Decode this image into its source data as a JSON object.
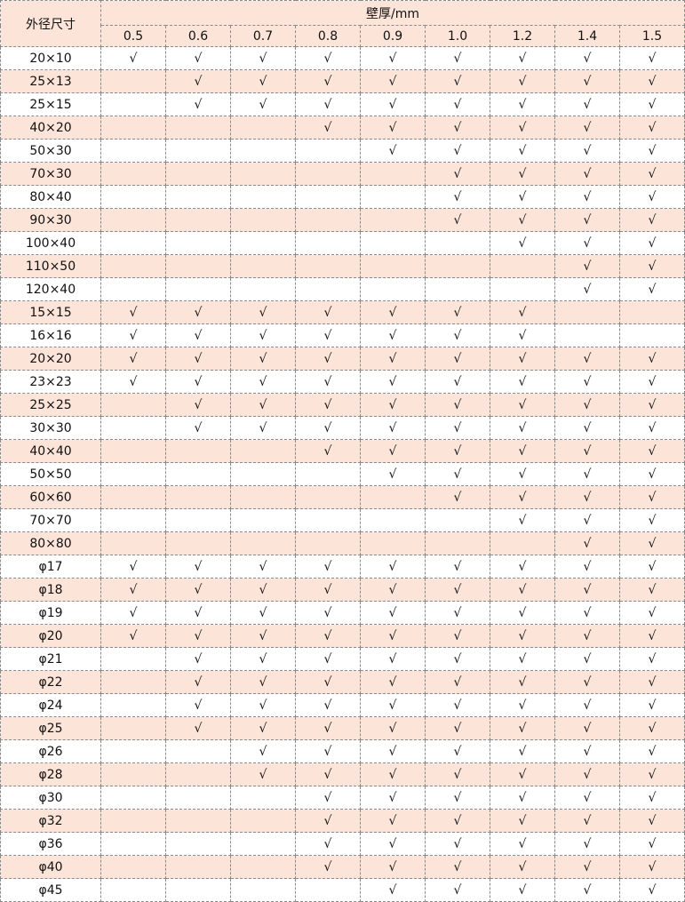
{
  "table": {
    "row_header": "外径尺寸",
    "group_header": "壁厚/mm",
    "columns": [
      "0.5",
      "0.6",
      "0.7",
      "0.8",
      "0.9",
      "1.0",
      "1.2",
      "1.4",
      "1.5"
    ],
    "colors": {
      "header_bg": "#fde4d8",
      "alt_row_bg": "#fde4d8",
      "border": "#8a8a8a"
    },
    "rows": [
      {
        "size": "20×10",
        "marks": [
          "√",
          "√",
          "√",
          "√",
          "√",
          "√",
          "√",
          "√",
          "√"
        ]
      },
      {
        "size": "25×13",
        "marks": [
          "",
          "√",
          "√",
          "√",
          "√",
          "√",
          "√",
          "√",
          "√"
        ]
      },
      {
        "size": "25×15",
        "marks": [
          "",
          "√",
          "√",
          "√",
          "√",
          "√",
          "√",
          "√",
          "√"
        ]
      },
      {
        "size": "40×20",
        "marks": [
          "",
          "",
          "",
          "√",
          "√",
          "√",
          "√",
          "√",
          "√"
        ]
      },
      {
        "size": "50×30",
        "marks": [
          "",
          "",
          "",
          "",
          "√",
          "√",
          "√",
          "√",
          "√"
        ]
      },
      {
        "size": "70×30",
        "marks": [
          "",
          "",
          "",
          "",
          "",
          "√",
          "√",
          "√",
          "√"
        ]
      },
      {
        "size": "80×40",
        "marks": [
          "",
          "",
          "",
          "",
          "",
          "√",
          "√",
          "√",
          "√"
        ]
      },
      {
        "size": "90×30",
        "marks": [
          "",
          "",
          "",
          "",
          "",
          "√",
          "√",
          "√",
          "√"
        ]
      },
      {
        "size": "100×40",
        "marks": [
          "",
          "",
          "",
          "",
          "",
          "",
          "√",
          "√",
          "√"
        ]
      },
      {
        "size": "110×50",
        "marks": [
          "",
          "",
          "",
          "",
          "",
          "",
          "",
          "√",
          "√"
        ]
      },
      {
        "size": "120×40",
        "marks": [
          "",
          "",
          "",
          "",
          "",
          "",
          "",
          "√",
          "√"
        ]
      },
      {
        "size": "15×15",
        "marks": [
          "√",
          "√",
          "√",
          "√",
          "√",
          "√",
          "√",
          "",
          ""
        ]
      },
      {
        "size": "16×16",
        "marks": [
          "√",
          "√",
          "√",
          "√",
          "√",
          "√",
          "√",
          "",
          ""
        ]
      },
      {
        "size": "20×20",
        "marks": [
          "√",
          "√",
          "√",
          "√",
          "√",
          "√",
          "√",
          "√",
          "√"
        ]
      },
      {
        "size": "23×23",
        "marks": [
          "√",
          "√",
          "√",
          "√",
          "√",
          "√",
          "√",
          "√",
          "√"
        ]
      },
      {
        "size": "25×25",
        "marks": [
          "",
          "√",
          "√",
          "√",
          "√",
          "√",
          "√",
          "√",
          "√"
        ]
      },
      {
        "size": "30×30",
        "marks": [
          "",
          "√",
          "√",
          "√",
          "√",
          "√",
          "√",
          "√",
          "√"
        ]
      },
      {
        "size": "40×40",
        "marks": [
          "",
          "",
          "",
          "√",
          "√",
          "√",
          "√",
          "√",
          "√"
        ]
      },
      {
        "size": "50×50",
        "marks": [
          "",
          "",
          "",
          "",
          "√",
          "√",
          "√",
          "√",
          "√"
        ]
      },
      {
        "size": "60×60",
        "marks": [
          "",
          "",
          "",
          "",
          "",
          "√",
          "√",
          "√",
          "√"
        ]
      },
      {
        "size": "70×70",
        "marks": [
          "",
          "",
          "",
          "",
          "",
          "",
          "√",
          "√",
          "√"
        ]
      },
      {
        "size": "80×80",
        "marks": [
          "",
          "",
          "",
          "",
          "",
          "",
          "",
          "√",
          "√"
        ]
      },
      {
        "size": "φ17",
        "marks": [
          "√",
          "√",
          "√",
          "√",
          "√",
          "√",
          "√",
          "√",
          "√"
        ]
      },
      {
        "size": "φ18",
        "marks": [
          "√",
          "√",
          "√",
          "√",
          "√",
          "√",
          "√",
          "√",
          "√"
        ]
      },
      {
        "size": "φ19",
        "marks": [
          "√",
          "√",
          "√",
          "√",
          "√",
          "√",
          "√",
          "√",
          "√"
        ]
      },
      {
        "size": "φ20",
        "marks": [
          "√",
          "√",
          "√",
          "√",
          "√",
          "√",
          "√",
          "√",
          "√"
        ]
      },
      {
        "size": "φ21",
        "marks": [
          "",
          "√",
          "√",
          "√",
          "√",
          "√",
          "√",
          "√",
          "√"
        ]
      },
      {
        "size": "φ22",
        "marks": [
          "",
          "√",
          "√",
          "√",
          "√",
          "√",
          "√",
          "√",
          "√"
        ]
      },
      {
        "size": "φ24",
        "marks": [
          "",
          "√",
          "√",
          "√",
          "√",
          "√",
          "√",
          "√",
          "√"
        ]
      },
      {
        "size": "φ25",
        "marks": [
          "",
          "√",
          "√",
          "√",
          "√",
          "√",
          "√",
          "√",
          "√"
        ]
      },
      {
        "size": "φ26",
        "marks": [
          "",
          "",
          "√",
          "√",
          "√",
          "√",
          "√",
          "√",
          "√"
        ]
      },
      {
        "size": "φ28",
        "marks": [
          "",
          "",
          "√",
          "√",
          "√",
          "√",
          "√",
          "√",
          "√"
        ]
      },
      {
        "size": "φ30",
        "marks": [
          "",
          "",
          "",
          "√",
          "√",
          "√",
          "√",
          "√",
          "√"
        ]
      },
      {
        "size": "φ32",
        "marks": [
          "",
          "",
          "",
          "√",
          "√",
          "√",
          "√",
          "√",
          "√"
        ]
      },
      {
        "size": "φ36",
        "marks": [
          "",
          "",
          "",
          "√",
          "√",
          "√",
          "√",
          "√",
          "√"
        ]
      },
      {
        "size": "φ40",
        "marks": [
          "",
          "",
          "",
          "√",
          "√",
          "√",
          "√",
          "√",
          "√"
        ]
      },
      {
        "size": "φ45",
        "marks": [
          "",
          "",
          "",
          "",
          "√",
          "√",
          "√",
          "√",
          "√"
        ]
      }
    ]
  }
}
